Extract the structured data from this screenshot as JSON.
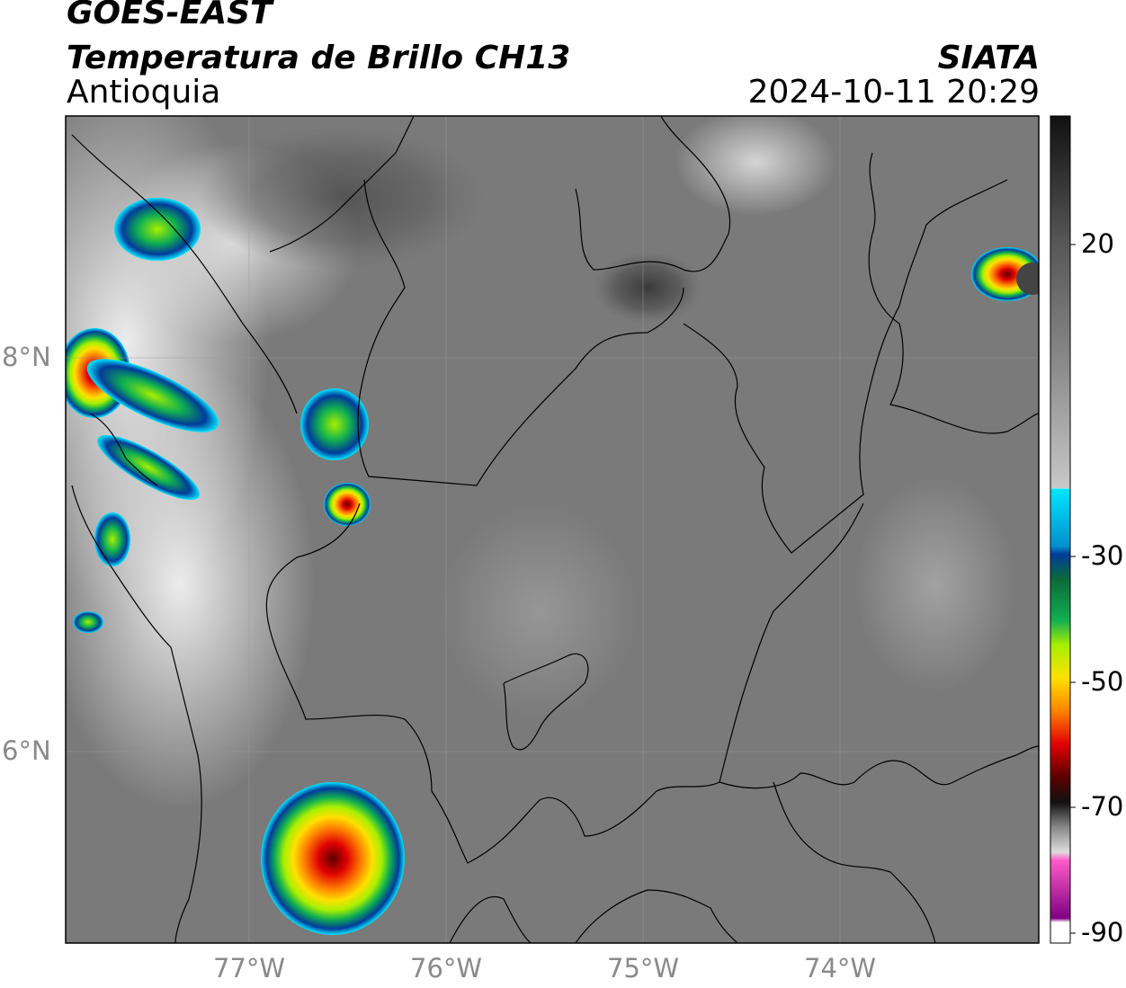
{
  "header": {
    "satellite": "GOES-EAST",
    "product": "Temperatura de Brillo CH13",
    "region": "Antioquia",
    "organization": "SIATA",
    "datetime": "2024-10-11 20:29"
  },
  "axes": {
    "lon_ticks": [
      "77°W",
      "76°W",
      "75°W",
      "74°W"
    ],
    "lat_ticks": [
      "8°N",
      "6°N"
    ]
  },
  "colorbar": {
    "ticks": [
      "20",
      "-30",
      "-50",
      "-70",
      "-90"
    ],
    "colors": {
      "warm_dark": "#1a1a1a",
      "warm_gray": "#8a8a8a",
      "white": "#f4f4f4",
      "cyan": "#00e5ff",
      "blue": "#003b9a",
      "green": "#10b050",
      "lime": "#a8f000",
      "yellow": "#ffe000",
      "orange": "#ff8000",
      "red": "#e00000",
      "darkred": "#5a0000",
      "pink": "#ff5ac8",
      "purple": "#800080"
    }
  },
  "map": {
    "background_gray": "#7a7a7a",
    "border_color": "#000000"
  }
}
